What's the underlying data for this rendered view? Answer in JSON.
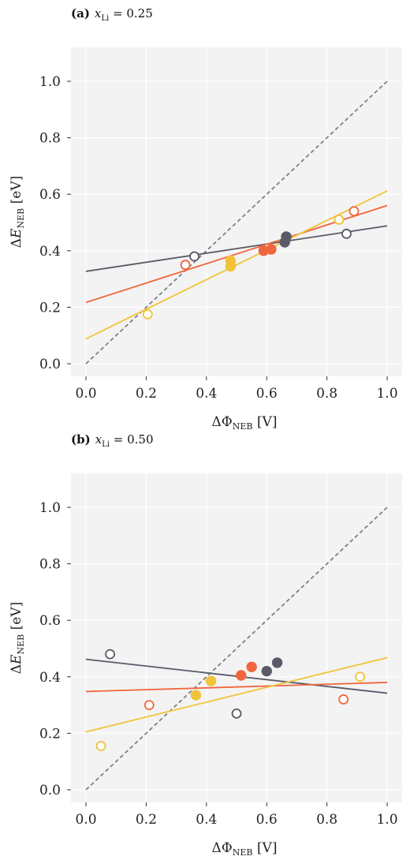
{
  "panels": [
    {
      "label": "(a)",
      "var": "x",
      "sub": "Li",
      "eq": " = 0.25"
    },
    {
      "label": "(b)",
      "var": "x",
      "sub": "Li",
      "eq": " = 0.50"
    }
  ],
  "colors": {
    "dark": "#5b5a68",
    "orange": "#f0663d",
    "yellow": "#f1c33a",
    "diag": "#808080",
    "plot_bg": "#f3f3f3",
    "grid": "#ffffff"
  },
  "chart_data": [
    {
      "type": "scatter",
      "xlabel": "ΔΦNEB [V]",
      "ylabel": "ΔENEB [eV]",
      "xlim": [
        0,
        1
      ],
      "ylim": [
        0,
        1
      ],
      "xticks": [
        "0.0",
        "0.2",
        "0.4",
        "0.6",
        "0.8",
        "1.0"
      ],
      "yticks": [
        "0.0",
        "0.2",
        "0.4",
        "0.6",
        "0.8",
        "1.0"
      ],
      "grid": true,
      "diagonal": [
        [
          0,
          0
        ],
        [
          1,
          1
        ]
      ],
      "series": [
        {
          "color": "dark",
          "filled": [
            [
              0.66,
              0.43
            ],
            [
              0.665,
              0.45
            ]
          ],
          "open": [
            [
              0.36,
              0.38
            ],
            [
              0.865,
              0.46
            ]
          ],
          "fit": [
            [
              0,
              0.327
            ],
            [
              1,
              0.488
            ]
          ]
        },
        {
          "color": "orange",
          "filled": [
            [
              0.59,
              0.4
            ],
            [
              0.615,
              0.405
            ]
          ],
          "open": [
            [
              0.33,
              0.35
            ],
            [
              0.89,
              0.54
            ]
          ],
          "fit": [
            [
              0,
              0.217
            ],
            [
              1,
              0.56
            ]
          ]
        },
        {
          "color": "yellow",
          "filled": [
            [
              0.48,
              0.365
            ],
            [
              0.48,
              0.345
            ]
          ],
          "open": [
            [
              0.205,
              0.175
            ],
            [
              0.84,
              0.51
            ]
          ],
          "fit": [
            [
              0,
              0.088
            ],
            [
              1,
              0.612
            ]
          ]
        }
      ]
    },
    {
      "type": "scatter",
      "xlabel": "ΔΦNEB [V]",
      "ylabel": "ΔENEB [eV]",
      "xlim": [
        0,
        1
      ],
      "ylim": [
        0,
        1
      ],
      "xticks": [
        "0.0",
        "0.2",
        "0.4",
        "0.6",
        "0.8",
        "1.0"
      ],
      "yticks": [
        "0.0",
        "0.2",
        "0.4",
        "0.6",
        "0.8",
        "1.0"
      ],
      "grid": true,
      "diagonal": [
        [
          0,
          0
        ],
        [
          1,
          1
        ]
      ],
      "series": [
        {
          "color": "dark",
          "filled": [
            [
              0.6,
              0.42
            ],
            [
              0.635,
              0.45
            ]
          ],
          "open": [
            [
              0.08,
              0.48
            ],
            [
              0.5,
              0.27
            ]
          ],
          "fit": [
            [
              0,
              0.462
            ],
            [
              1,
              0.342
            ]
          ]
        },
        {
          "color": "orange",
          "filled": [
            [
              0.515,
              0.405
            ],
            [
              0.55,
              0.435
            ]
          ],
          "open": [
            [
              0.21,
              0.3
            ],
            [
              0.855,
              0.32
            ]
          ],
          "fit": [
            [
              0,
              0.348
            ],
            [
              1,
              0.38
            ]
          ]
        },
        {
          "color": "yellow",
          "filled": [
            [
              0.365,
              0.335
            ],
            [
              0.415,
              0.385
            ]
          ],
          "open": [
            [
              0.05,
              0.155
            ],
            [
              0.91,
              0.4
            ]
          ],
          "fit": [
            [
              0,
              0.205
            ],
            [
              1,
              0.468
            ]
          ]
        }
      ]
    }
  ]
}
